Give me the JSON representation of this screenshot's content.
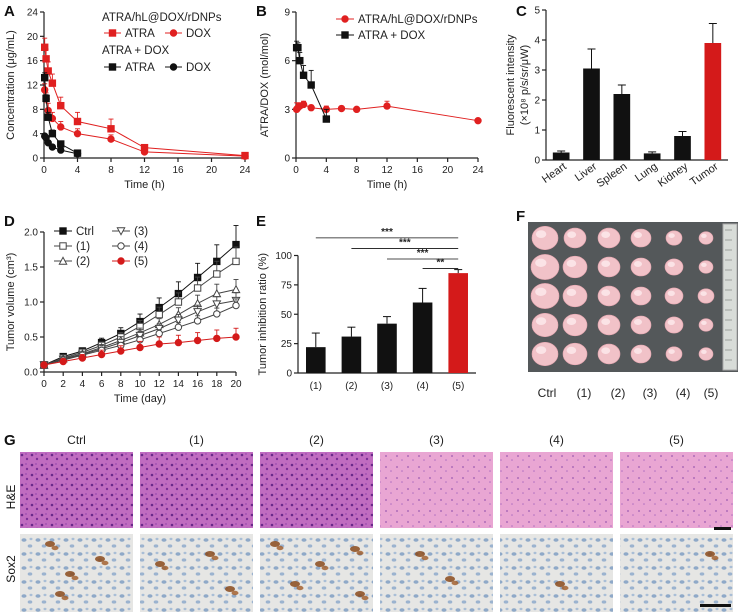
{
  "panels": {
    "A": "A",
    "B": "B",
    "C": "C",
    "D": "D",
    "E": "E",
    "F": "F",
    "G": "G"
  },
  "chart_data": [
    {
      "id": "A",
      "type": "line",
      "xlabel": "Time (h)",
      "ylabel": "Concentration (μg/mL)",
      "xlim": [
        0,
        24
      ],
      "ylim": [
        0,
        24
      ],
      "xticks": [
        0,
        4,
        8,
        12,
        16,
        20,
        24
      ],
      "yticks": [
        0,
        4,
        8,
        12,
        16,
        20,
        24
      ],
      "legend": {
        "group1_title": "ATRA/hL@DOX/rDNPs",
        "group2_title": "ATRA + DOX",
        "atra": "ATRA",
        "dox": "DOX"
      },
      "series": [
        {
          "name": "ATRA/hL@DOX/rDNPs ATRA",
          "color": "#e02020",
          "marker": "square",
          "x": [
            0.083,
            0.25,
            0.5,
            1,
            2,
            4,
            8,
            12,
            24
          ],
          "y": [
            18.2,
            16.3,
            14.3,
            12.3,
            8.6,
            6.0,
            4.8,
            1.7,
            0.4
          ]
        },
        {
          "name": "ATRA/hL@DOX/rDNPs DOX",
          "color": "#e02020",
          "marker": "circle",
          "x": [
            0.083,
            0.25,
            0.5,
            1,
            2,
            4,
            8,
            12,
            24
          ],
          "y": [
            11.2,
            9.7,
            7.8,
            6.5,
            5.1,
            4.0,
            3.1,
            1.0,
            0.3
          ]
        },
        {
          "name": "ATRA + DOX ATRA",
          "color": "#111111",
          "marker": "square",
          "x": [
            0.083,
            0.25,
            0.5,
            1,
            2,
            4
          ],
          "y": [
            13.2,
            9.8,
            6.7,
            4.0,
            2.3,
            0.8
          ]
        },
        {
          "name": "ATRA + DOX DOX",
          "color": "#111111",
          "marker": "circle",
          "x": [
            0.083,
            0.25,
            0.5,
            1,
            2,
            4
          ],
          "y": [
            3.6,
            3.3,
            2.5,
            1.8,
            1.3,
            0.7
          ]
        }
      ]
    },
    {
      "id": "B",
      "type": "line",
      "xlabel": "Time (h)",
      "ylabel": "ATRA/DOX (mol/mol)",
      "xlim": [
        0,
        24
      ],
      "ylim": [
        0,
        9
      ],
      "xticks": [
        0,
        4,
        8,
        12,
        16,
        20,
        24
      ],
      "yticks": [
        0,
        3,
        6,
        9
      ],
      "series": [
        {
          "name": "ATRA/hL@DOX/rDNPs",
          "color": "#e02020",
          "marker": "circle",
          "x": [
            0.083,
            0.25,
            0.5,
            1,
            2,
            4,
            6,
            8,
            12,
            24
          ],
          "y": [
            3.0,
            3.1,
            3.2,
            3.3,
            3.1,
            3.0,
            3.05,
            3.0,
            3.2,
            2.3
          ]
        },
        {
          "name": "ATRA + DOX",
          "color": "#111111",
          "marker": "square",
          "x": [
            0.083,
            0.25,
            0.5,
            1,
            2,
            4
          ],
          "y": [
            6.8,
            6.8,
            6.0,
            5.1,
            4.5,
            2.4
          ]
        }
      ]
    },
    {
      "id": "C",
      "type": "bar",
      "ylabel": "Fluorescent intensity",
      "ylabel2": "(×10⁸ p/s/sr/μW)",
      "ylim": [
        0,
        5
      ],
      "yticks": [
        0,
        1,
        2,
        3,
        4,
        5
      ],
      "categories": [
        "Heart",
        "Liver",
        "Spleen",
        "Lung",
        "Kidney",
        "Tumor"
      ],
      "values": [
        0.25,
        3.05,
        2.2,
        0.22,
        0.8,
        3.9
      ],
      "errors": [
        0.05,
        0.65,
        0.3,
        0.05,
        0.15,
        0.65
      ],
      "colors": [
        "#111111",
        "#111111",
        "#111111",
        "#111111",
        "#111111",
        "#d41a1a"
      ]
    },
    {
      "id": "D",
      "type": "line",
      "xlabel": "Time (day)",
      "ylabel": "Tumor volume (cm³)",
      "xlim": [
        0,
        20
      ],
      "ylim": [
        0,
        2.0
      ],
      "xticks": [
        0,
        2,
        4,
        6,
        8,
        10,
        12,
        14,
        16,
        18,
        20
      ],
      "yticks": [
        0.0,
        0.5,
        1.0,
        1.5,
        2.0
      ],
      "series": [
        {
          "name": "Ctrl",
          "legend": "Ctrl",
          "marker": "square-filled",
          "color": "#111111",
          "x": [
            0,
            2,
            4,
            6,
            8,
            10,
            12,
            14,
            16,
            18,
            20
          ],
          "y": [
            0.1,
            0.22,
            0.3,
            0.42,
            0.55,
            0.72,
            0.92,
            1.12,
            1.35,
            1.58,
            1.82
          ]
        },
        {
          "name": "(1)",
          "legend": "(1)",
          "marker": "square-open",
          "color": "#444444",
          "x": [
            0,
            2,
            4,
            6,
            8,
            10,
            12,
            14,
            16,
            18,
            20
          ],
          "y": [
            0.1,
            0.2,
            0.28,
            0.38,
            0.5,
            0.65,
            0.82,
            1.0,
            1.2,
            1.4,
            1.58
          ]
        },
        {
          "name": "(2)",
          "legend": "(2)",
          "marker": "triangle-up-open",
          "color": "#444444",
          "x": [
            0,
            2,
            4,
            6,
            8,
            10,
            12,
            14,
            16,
            18,
            20
          ],
          "y": [
            0.1,
            0.19,
            0.26,
            0.35,
            0.45,
            0.56,
            0.68,
            0.82,
            0.98,
            1.12,
            1.18
          ]
        },
        {
          "name": "(3)",
          "legend": "(3)",
          "marker": "triangle-down-open",
          "color": "#444444",
          "x": [
            0,
            2,
            4,
            6,
            8,
            10,
            12,
            14,
            16,
            18,
            20
          ],
          "y": [
            0.1,
            0.18,
            0.25,
            0.33,
            0.42,
            0.52,
            0.62,
            0.74,
            0.86,
            0.97,
            1.02
          ]
        },
        {
          "name": "(4)",
          "legend": "(4)",
          "marker": "circle-open",
          "color": "#444444",
          "x": [
            0,
            2,
            4,
            6,
            8,
            10,
            12,
            14,
            16,
            18,
            20
          ],
          "y": [
            0.1,
            0.17,
            0.24,
            0.31,
            0.38,
            0.46,
            0.55,
            0.64,
            0.73,
            0.83,
            0.95
          ]
        },
        {
          "name": "(5)",
          "legend": "(5)",
          "marker": "circle-filled",
          "color": "#d41a1a",
          "x": [
            0,
            2,
            4,
            6,
            8,
            10,
            12,
            14,
            16,
            18,
            20
          ],
          "y": [
            0.1,
            0.15,
            0.2,
            0.25,
            0.3,
            0.35,
            0.4,
            0.42,
            0.45,
            0.48,
            0.5
          ]
        }
      ]
    },
    {
      "id": "E",
      "type": "bar",
      "ylabel": "Tumor inhibition ratio (%)",
      "ylim": [
        0,
        100
      ],
      "yticks": [
        0,
        25,
        50,
        75,
        100
      ],
      "categories": [
        "(1)",
        "(2)",
        "(3)",
        "(4)",
        "(5)"
      ],
      "values": [
        22,
        31,
        42,
        60,
        85
      ],
      "errors": [
        12,
        8,
        6,
        12,
        3
      ],
      "colors": [
        "#111111",
        "#111111",
        "#111111",
        "#111111",
        "#d41a1a"
      ],
      "significance": [
        {
          "from": "(1)",
          "to": "(5)",
          "label": "***",
          "level": 115
        },
        {
          "from": "(2)",
          "to": "(5)",
          "label": "***",
          "level": 106
        },
        {
          "from": "(3)",
          "to": "(5)",
          "label": "***",
          "level": 97
        },
        {
          "from": "(4)",
          "to": "(5)",
          "label": "**",
          "level": 89
        }
      ]
    }
  ],
  "panel_F": {
    "labels": [
      "Ctrl",
      "(1)",
      "(2)",
      "(3)",
      "(4)",
      "(5)"
    ]
  },
  "panel_G": {
    "columns": [
      "Ctrl",
      "(1)",
      "(2)",
      "(3)",
      "(4)",
      "(5)"
    ],
    "rows": [
      "H&E",
      "Sox2"
    ]
  }
}
